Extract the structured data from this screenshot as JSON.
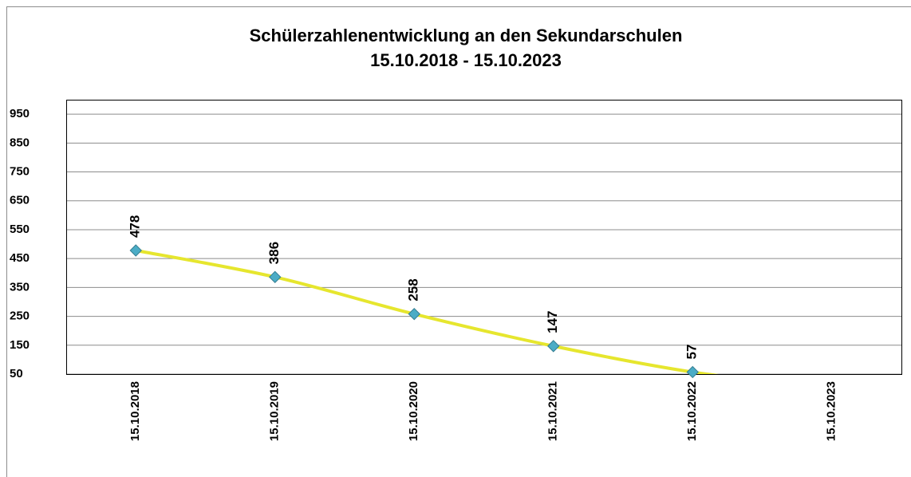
{
  "chart_data": {
    "type": "line",
    "title": "Schülerzahlenentwicklung an den Sekundarschulen",
    "subtitle": "15.10.2018 - 15.10.2023",
    "categories": [
      "15.10.2018",
      "15.10.2019",
      "15.10.2020",
      "15.10.2021",
      "15.10.2022",
      "15.10.2023"
    ],
    "series": [
      {
        "color": "#e6e62e",
        "marker_color": "#4bacc6",
        "values": [
          478,
          386,
          258,
          147,
          57,
          0
        ]
      }
    ],
    "ylim": [
      50,
      1000
    ],
    "yticks": [
      50,
      150,
      250,
      350,
      450,
      550,
      650,
      750,
      850,
      950
    ],
    "grid": true
  }
}
